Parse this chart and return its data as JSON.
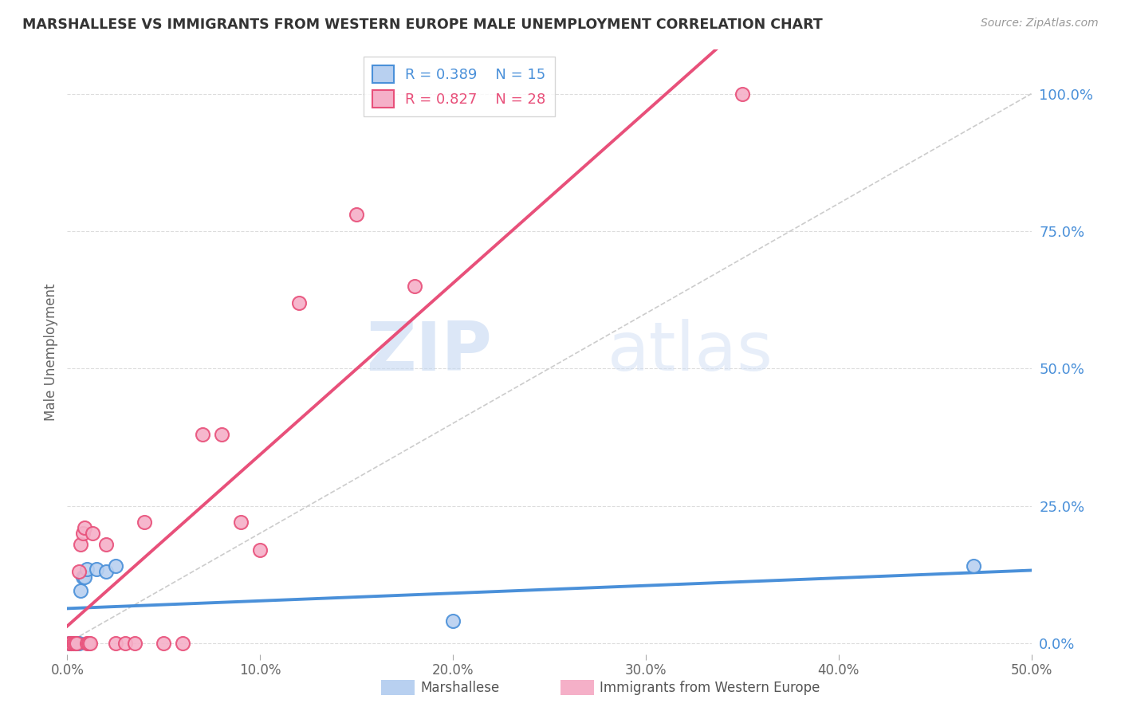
{
  "title": "MARSHALLESE VS IMMIGRANTS FROM WESTERN EUROPE MALE UNEMPLOYMENT CORRELATION CHART",
  "source": "Source: ZipAtlas.com",
  "ylabel": "Male Unemployment",
  "x_min": 0.0,
  "x_max": 0.5,
  "y_min": -0.02,
  "y_max": 1.08,
  "right_yticks": [
    0.0,
    0.25,
    0.5,
    0.75,
    1.0
  ],
  "right_yticklabels": [
    "0.0%",
    "25.0%",
    "50.0%",
    "75.0%",
    "100.0%"
  ],
  "xticks": [
    0.0,
    0.1,
    0.2,
    0.3,
    0.4,
    0.5
  ],
  "xticklabels": [
    "0.0%",
    "10.0%",
    "20.0%",
    "30.0%",
    "40.0%",
    "50.0%"
  ],
  "watermark_zip": "ZIP",
  "watermark_atlas": "atlas",
  "marshallese_color": "#b8d0f0",
  "immigrants_color": "#f5b0c8",
  "marshallese_line_color": "#4a90d9",
  "immigrants_line_color": "#e8507a",
  "diag_color": "#cccccc",
  "grid_color": "#dddddd",
  "legend_r1": "R = 0.389",
  "legend_n1": "N = 15",
  "legend_r2": "R = 0.827",
  "legend_n2": "N = 28",
  "marshallese_x": [
    0.001,
    0.002,
    0.003,
    0.004,
    0.005,
    0.006,
    0.007,
    0.008,
    0.009,
    0.01,
    0.015,
    0.02,
    0.025,
    0.2,
    0.47
  ],
  "marshallese_y": [
    0.0,
    0.0,
    0.0,
    0.0,
    0.0,
    0.0,
    0.095,
    0.12,
    0.12,
    0.135,
    0.135,
    0.13,
    0.14,
    0.04,
    0.14
  ],
  "immigrants_x": [
    0.001,
    0.002,
    0.003,
    0.004,
    0.005,
    0.006,
    0.007,
    0.008,
    0.009,
    0.01,
    0.011,
    0.012,
    0.013,
    0.02,
    0.025,
    0.03,
    0.035,
    0.04,
    0.05,
    0.06,
    0.07,
    0.08,
    0.09,
    0.1,
    0.12,
    0.15,
    0.18,
    0.35
  ],
  "immigrants_y": [
    0.0,
    0.0,
    0.0,
    0.0,
    0.0,
    0.13,
    0.18,
    0.2,
    0.21,
    0.0,
    0.0,
    0.0,
    0.2,
    0.18,
    0.0,
    0.0,
    0.0,
    0.22,
    0.0,
    0.0,
    0.38,
    0.38,
    0.22,
    0.17,
    0.62,
    0.78,
    0.65,
    1.0
  ]
}
